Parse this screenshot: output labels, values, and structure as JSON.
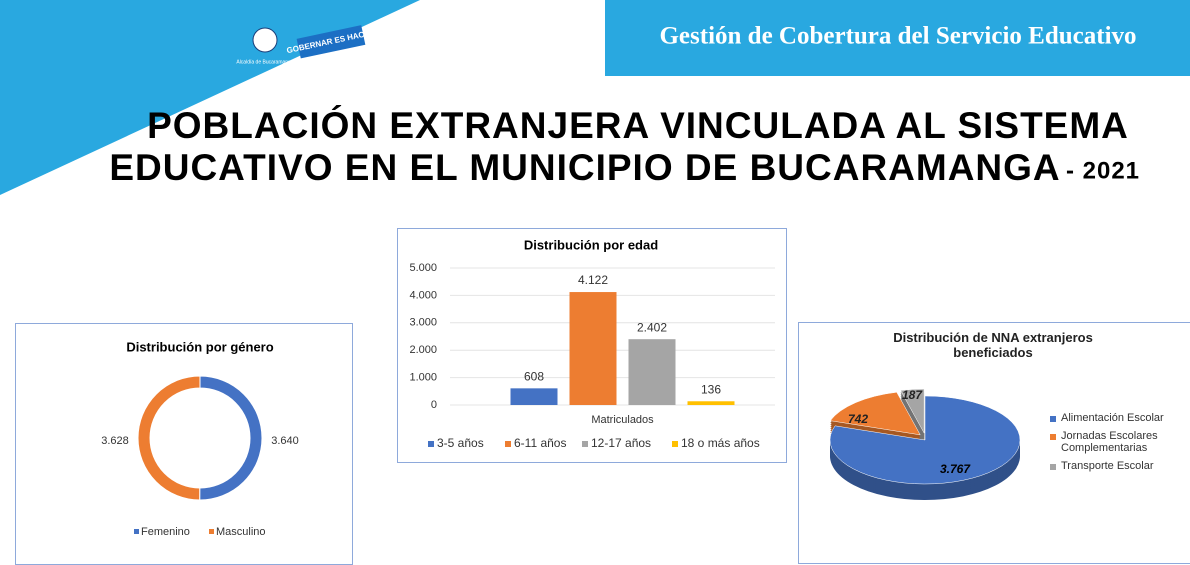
{
  "header": {
    "banner": "Gestión de Cobertura del Servicio Educativo",
    "logo_left": "Alcaldía de Bucaramanga",
    "logo_right": "GOBERNAR ES HACER"
  },
  "title": {
    "line1": "POBLACIÓN EXTRANJERA VINCULADA AL SISTEMA",
    "line2": "EDUCATIVO EN EL MUNICIPIO DE BUCARAMANGA",
    "year": "- 2021"
  },
  "chart_data": [
    {
      "type": "donut",
      "title": "Distribución por género",
      "categories": [
        "Femenino",
        "Masculino"
      ],
      "values": [
        3640,
        3628
      ],
      "value_labels": [
        "3.640",
        "3.628"
      ],
      "colors": [
        "#4472c4",
        "#ed7d31"
      ],
      "legend": "bottom"
    },
    {
      "type": "bar",
      "title": "Distribución por edad",
      "categories": [
        "Matriculados"
      ],
      "series": [
        {
          "name": "3-5 años",
          "color": "#4472c4",
          "values": [
            608
          ],
          "value_labels": [
            "608"
          ]
        },
        {
          "name": "6-11 años",
          "color": "#ed7d31",
          "values": [
            4122
          ],
          "value_labels": [
            "4.122"
          ]
        },
        {
          "name": "12-17 años",
          "color": "#a5a5a5",
          "values": [
            2402
          ],
          "value_labels": [
            "2.402"
          ]
        },
        {
          "name": "18 o más años",
          "color": "#ffc000",
          "values": [
            136
          ],
          "value_labels": [
            "136"
          ]
        }
      ],
      "ylim": [
        0,
        5000
      ],
      "yticks": [
        0,
        {
          "value": 1000,
          "label": "1.000"
        },
        {
          "value": 2000,
          "label": "2.000"
        },
        {
          "value": 3000,
          "label": "3.000"
        },
        {
          "value": 4000,
          "label": "4.000"
        },
        {
          "value": 5000,
          "label": "5.000"
        }
      ],
      "grid": true,
      "legend": "bottom"
    },
    {
      "type": "pie3d",
      "title": "Distribución de NNA extranjeros beneficiados",
      "categories": [
        "Alimentación Escolar",
        "Jornadas Escolares Complementarias",
        "Transporte Escolar"
      ],
      "values": [
        3767,
        742,
        187
      ],
      "value_labels": [
        "3.767",
        "742",
        "187"
      ],
      "colors": [
        "#4472c4",
        "#ed7d31",
        "#a5a5a5"
      ],
      "legend": "right"
    }
  ]
}
